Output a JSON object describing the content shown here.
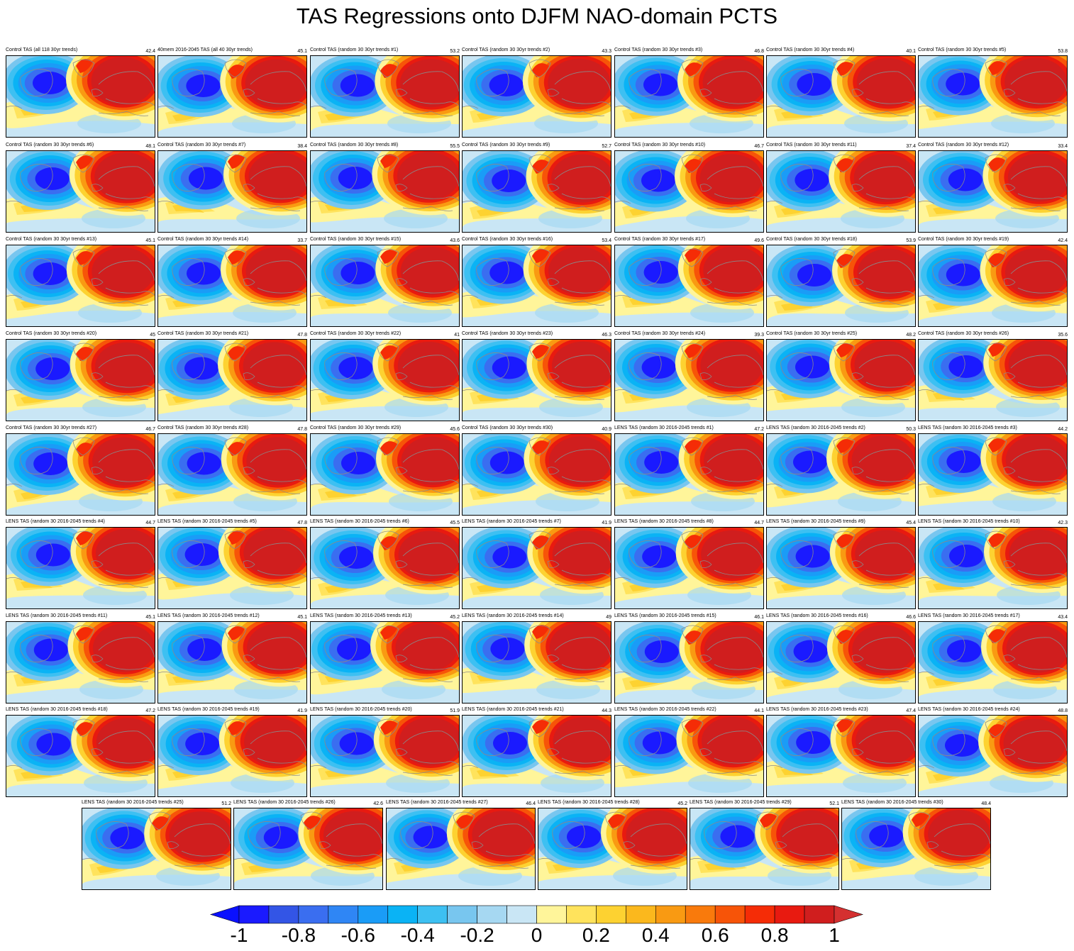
{
  "title": "TAS Regressions onto DJFM NAO-domain PCTS",
  "colors": {
    "levels": [
      "#1a1aff",
      "#3355e6",
      "#3a6ef0",
      "#2f86f5",
      "#1a9cf7",
      "#0ab3f5",
      "#3dc0f2",
      "#78c6ef",
      "#a6d8f2",
      "#c9e6f5",
      "#fff59a",
      "#ffe35c",
      "#fdd231",
      "#fbb81d",
      "#f99a12",
      "#f97a0c",
      "#f75408",
      "#f52c06",
      "#e81a10",
      "#d01e1e"
    ],
    "outline": "#8a8a8a"
  },
  "colorbar": {
    "tick_labels": [
      "-1",
      "-0.8",
      "-0.6",
      "-0.4",
      "-0.2",
      "0",
      "0.2",
      "0.4",
      "0.6",
      "0.8",
      "1"
    ],
    "min": -1,
    "max": 1
  },
  "panels": [
    {
      "label": "Control TAS (all 118 30yr trends)",
      "value": "42.4"
    },
    {
      "label": "40mem 2016-2045 TAS (all 40 30yr trends)",
      "value": "45.1"
    },
    {
      "label": "Control TAS (random 30 30yr trends #1)",
      "value": "53.2"
    },
    {
      "label": "Control TAS (random 30 30yr trends #2)",
      "value": "43.3"
    },
    {
      "label": "Control TAS (random 30 30yr trends #3)",
      "value": "46.8"
    },
    {
      "label": "Control TAS (random 30 30yr trends #4)",
      "value": "40.1"
    },
    {
      "label": "Control TAS (random 30 30yr trends #5)",
      "value": "53.8"
    },
    {
      "label": "Control TAS (random 30 30yr trends #6)",
      "value": "48.1"
    },
    {
      "label": "Control TAS (random 30 30yr trends #7)",
      "value": "38.4"
    },
    {
      "label": "Control TAS (random 30 30yr trends #8)",
      "value": "55.5"
    },
    {
      "label": "Control TAS (random 30 30yr trends #9)",
      "value": "52.7"
    },
    {
      "label": "Control TAS (random 30 30yr trends #10)",
      "value": "46.7"
    },
    {
      "label": "Control TAS (random 30 30yr trends #11)",
      "value": "37.4"
    },
    {
      "label": "Control TAS (random 30 30yr trends #12)",
      "value": "33.4"
    },
    {
      "label": "Control TAS (random 30 30yr trends #13)",
      "value": "45.1"
    },
    {
      "label": "Control TAS (random 30 30yr trends #14)",
      "value": "33.7"
    },
    {
      "label": "Control TAS (random 30 30yr trends #15)",
      "value": "43.6"
    },
    {
      "label": "Control TAS (random 30 30yr trends #16)",
      "value": "53.4"
    },
    {
      "label": "Control TAS (random 30 30yr trends #17)",
      "value": "49.6"
    },
    {
      "label": "Control TAS (random 30 30yr trends #18)",
      "value": "53.9"
    },
    {
      "label": "Control TAS (random 30 30yr trends #19)",
      "value": "42.4"
    },
    {
      "label": "Control TAS (random 30 30yr trends #20)",
      "value": "45"
    },
    {
      "label": "Control TAS (random 30 30yr trends #21)",
      "value": "47.8"
    },
    {
      "label": "Control TAS (random 30 30yr trends #22)",
      "value": "41"
    },
    {
      "label": "Control TAS (random 30 30yr trends #23)",
      "value": "46.3"
    },
    {
      "label": "Control TAS (random 30 30yr trends #24)",
      "value": "39.3"
    },
    {
      "label": "Control TAS (random 30 30yr trends #25)",
      "value": "48.2"
    },
    {
      "label": "Control TAS (random 30 30yr trends #26)",
      "value": "35.6"
    },
    {
      "label": "Control TAS (random 30 30yr trends #27)",
      "value": "46.7"
    },
    {
      "label": "Control TAS (random 30 30yr trends #28)",
      "value": "47.8"
    },
    {
      "label": "Control TAS (random 30 30yr trends #29)",
      "value": "45.6"
    },
    {
      "label": "Control TAS (random 30 30yr trends #30)",
      "value": "40.9"
    },
    {
      "label": "LENS TAS (random 30 2016-2045 trends #1)",
      "value": "47.2"
    },
    {
      "label": "LENS TAS (random 30 2016-2045 trends #2)",
      "value": "50.3"
    },
    {
      "label": "LENS TAS (random 30 2016-2045 trends #3)",
      "value": "44.2"
    },
    {
      "label": "LENS TAS (random 30 2016-2045 trends #4)",
      "value": "44.7"
    },
    {
      "label": "LENS TAS (random 30 2016-2045 trends #5)",
      "value": "47.8"
    },
    {
      "label": "LENS TAS (random 30 2016-2045 trends #6)",
      "value": "45.5"
    },
    {
      "label": "LENS TAS (random 30 2016-2045 trends #7)",
      "value": "41.9"
    },
    {
      "label": "LENS TAS (random 30 2016-2045 trends #8)",
      "value": "44.7"
    },
    {
      "label": "LENS TAS (random 30 2016-2045 trends #9)",
      "value": "45.4"
    },
    {
      "label": "LENS TAS (random 30 2016-2045 trends #10)",
      "value": "42.3"
    },
    {
      "label": "LENS TAS (random 30 2016-2045 trends #11)",
      "value": "45.1"
    },
    {
      "label": "LENS TAS (random 30 2016-2045 trends #12)",
      "value": "45.1"
    },
    {
      "label": "LENS TAS (random 30 2016-2045 trends #13)",
      "value": "45.2"
    },
    {
      "label": "LENS TAS (random 30 2016-2045 trends #14)",
      "value": "49"
    },
    {
      "label": "LENS TAS (random 30 2016-2045 trends #15)",
      "value": "46.1"
    },
    {
      "label": "LENS TAS (random 30 2016-2045 trends #16)",
      "value": "46.6"
    },
    {
      "label": "LENS TAS (random 30 2016-2045 trends #17)",
      "value": "43.4"
    },
    {
      "label": "LENS TAS (random 30 2016-2045 trends #18)",
      "value": "47.2"
    },
    {
      "label": "LENS TAS (random 30 2016-2045 trends #19)",
      "value": "41.9"
    },
    {
      "label": "LENS TAS (random 30 2016-2045 trends #20)",
      "value": "51.9"
    },
    {
      "label": "LENS TAS (random 30 2016-2045 trends #21)",
      "value": "44.3"
    },
    {
      "label": "LENS TAS (random 30 2016-2045 trends #22)",
      "value": "44.1"
    },
    {
      "label": "LENS TAS (random 30 2016-2045 trends #23)",
      "value": "47.4"
    },
    {
      "label": "LENS TAS (random 30 2016-2045 trends #24)",
      "value": "48.8"
    },
    {
      "label": "LENS TAS (random 30 2016-2045 trends #25)",
      "value": "51.2"
    },
    {
      "label": "LENS TAS (random 30 2016-2045 trends #26)",
      "value": "42.6"
    },
    {
      "label": "LENS TAS (random 30 2016-2045 trends #27)",
      "value": "46.4"
    },
    {
      "label": "LENS TAS (random 30 2016-2045 trends #28)",
      "value": "45.2"
    },
    {
      "label": "LENS TAS (random 30 2016-2045 trends #29)",
      "value": "52.1"
    },
    {
      "label": "LENS TAS (random 30 2016-2045 trends #30)",
      "value": "48.4"
    }
  ]
}
